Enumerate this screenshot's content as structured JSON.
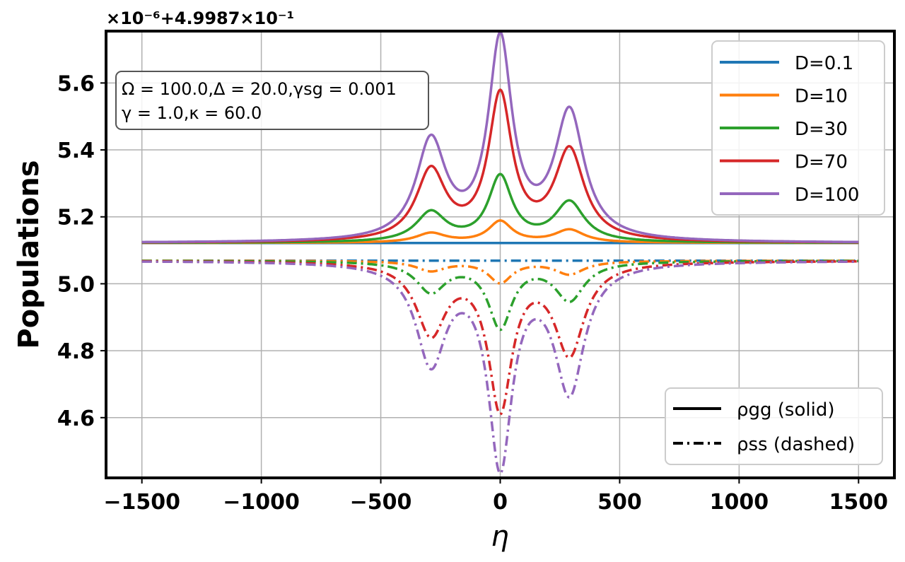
{
  "chart_data": {
    "type": "line",
    "xlabel": "η",
    "ylabel": "Populations",
    "xlim": [
      -1650,
      1650
    ],
    "ylim": [
      4.42,
      5.755
    ],
    "x_ticks": [
      -1500,
      -1000,
      -500,
      0,
      500,
      1000,
      1500
    ],
    "x_tick_labels": [
      "−1500",
      "−1000",
      "−500",
      "0",
      "500",
      "1000",
      "1500"
    ],
    "y_ticks": [
      4.6,
      4.8,
      5.0,
      5.2,
      5.4,
      5.6
    ],
    "y_tick_labels": [
      "4.6",
      "4.8",
      "5.0",
      "5.2",
      "5.4",
      "5.6"
    ],
    "offset_text": "×10⁻⁶+4.9987×10⁻¹",
    "grid": true,
    "annotation_lines": [
      "Ω = 100.0,Δ = 20.0,γsg = 0.001",
      "γ = 1.0,κ = 60.0"
    ],
    "legend_series": [
      {
        "label": "D=0.1",
        "color": "#1f77b4"
      },
      {
        "label": "D=10",
        "color": "#ff7f0e"
      },
      {
        "label": "D=30",
        "color": "#2ca02c"
      },
      {
        "label": "D=70",
        "color": "#d62728"
      },
      {
        "label": "D=100",
        "color": "#9467bd"
      }
    ],
    "legend_styles": [
      {
        "label": "ρgg (solid)",
        "style": "solid"
      },
      {
        "label": "ρss (dashed)",
        "style": "dashdot"
      }
    ],
    "peak_positions": [
      -290,
      0,
      290
    ],
    "baseline_rho_gg": 5.122,
    "baseline_rho_ss": 5.069,
    "series": [
      {
        "name": "D=0.1 ρgg",
        "D": 0.1,
        "style": "solid",
        "color": "#1f77b4",
        "peak_values": [
          5.122,
          5.122,
          5.122
        ]
      },
      {
        "name": "D=10 ρgg",
        "D": 10,
        "style": "solid",
        "color": "#ff7f0e",
        "peak_values": [
          5.15,
          5.185,
          5.16
        ]
      },
      {
        "name": "D=30 ρgg",
        "D": 30,
        "style": "solid",
        "color": "#2ca02c",
        "peak_values": [
          5.21,
          5.315,
          5.24
        ]
      },
      {
        "name": "D=70 ρgg",
        "D": 70,
        "style": "solid",
        "color": "#d62728",
        "peak_values": [
          5.33,
          5.55,
          5.39
        ]
      },
      {
        "name": "D=100 ρgg",
        "D": 100,
        "style": "solid",
        "color": "#9467bd",
        "peak_values": [
          5.415,
          5.71,
          5.5
        ]
      },
      {
        "name": "D=0.1 ρss",
        "D": 0.1,
        "style": "dashdot",
        "color": "#1f77b4",
        "peak_values": [
          5.069,
          5.069,
          5.069
        ]
      },
      {
        "name": "D=10 ρss",
        "D": 10,
        "style": "dashdot",
        "color": "#ff7f0e",
        "peak_values": [
          5.04,
          5.005,
          5.03
        ]
      },
      {
        "name": "D=30 ρss",
        "D": 30,
        "style": "dashdot",
        "color": "#2ca02c",
        "peak_values": [
          4.98,
          4.875,
          4.955
        ]
      },
      {
        "name": "D=70 ρss",
        "D": 70,
        "style": "dashdot",
        "color": "#d62728",
        "peak_values": [
          4.86,
          4.64,
          4.8
        ]
      },
      {
        "name": "D=100 ρss",
        "D": 100,
        "style": "dashdot",
        "color": "#9467bd",
        "peak_values": [
          4.775,
          4.475,
          4.69
        ]
      }
    ]
  }
}
